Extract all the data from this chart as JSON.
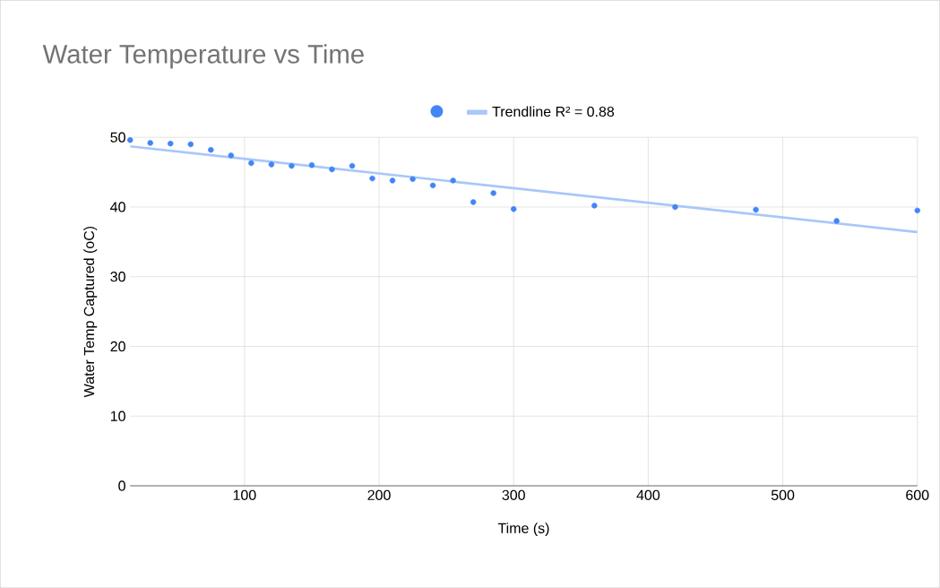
{
  "chart_data": {
    "type": "scatter",
    "title": "Water Temperature vs Time",
    "xlabel": "Time (s)",
    "ylabel": "Water Temp Captured (oC)",
    "xlim": [
      15,
      600
    ],
    "ylim": [
      0,
      50
    ],
    "xticks": [
      100,
      200,
      300,
      400,
      500,
      600
    ],
    "yticks": [
      0,
      10,
      20,
      30,
      40,
      50
    ],
    "grid": true,
    "legend": "top",
    "series": [
      {
        "color": "#4285f4",
        "marker": "circle",
        "x": [
          15,
          30,
          45,
          60,
          75,
          90,
          105,
          120,
          135,
          150,
          165,
          180,
          195,
          210,
          225,
          240,
          255,
          270,
          285,
          300,
          360,
          420,
          480,
          540,
          600
        ],
        "values": [
          49.6,
          49.2,
          49.1,
          49.0,
          48.2,
          47.4,
          46.3,
          46.1,
          45.9,
          46.0,
          45.4,
          45.9,
          44.1,
          43.8,
          44.0,
          43.1,
          43.8,
          40.7,
          42.0,
          39.7,
          40.2,
          40.0,
          39.6,
          38.0,
          39.5
        ]
      },
      {
        "type": "line",
        "name": "Trendline  R² = 0.88",
        "color": "#a8c7fa",
        "x": [
          15,
          600
        ],
        "values": [
          48.7,
          36.4
        ]
      }
    ]
  }
}
